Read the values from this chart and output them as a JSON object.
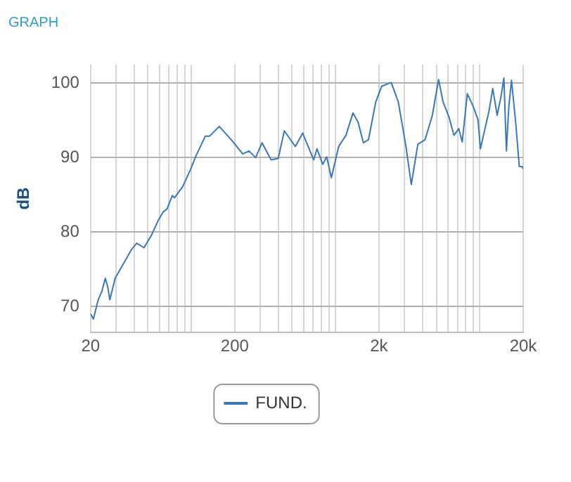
{
  "chart_data": {
    "type": "line",
    "title": "GRAPH",
    "ylabel": "dB",
    "log": "x",
    "grid": true,
    "legend": "bottom",
    "marker": "none",
    "line_style": "solid",
    "xlim": [
      20,
      20000
    ],
    "ylim": [
      66.5,
      102.5
    ],
    "xticks": [
      20,
      {
        "value": 30,
        "label": null
      },
      {
        "value": 40,
        "label": null
      },
      {
        "value": 50,
        "label": null
      },
      {
        "value": 60,
        "label": null
      },
      {
        "value": 70,
        "label": null
      },
      {
        "value": 80,
        "label": null
      },
      {
        "value": 90,
        "label": null
      },
      {
        "value": 100,
        "label": null
      },
      200,
      {
        "value": 300,
        "label": null
      },
      {
        "value": 400,
        "label": null
      },
      {
        "value": 500,
        "label": null
      },
      {
        "value": 600,
        "label": null
      },
      {
        "value": 700,
        "label": null
      },
      {
        "value": 800,
        "label": null
      },
      {
        "value": 900,
        "label": null
      },
      {
        "value": 1000,
        "label": null
      },
      {
        "value": 2000,
        "label": "2k"
      },
      {
        "value": 3000,
        "label": null
      },
      {
        "value": 4000,
        "label": null
      },
      {
        "value": 5000,
        "label": null
      },
      {
        "value": 6000,
        "label": null
      },
      {
        "value": 7000,
        "label": null
      },
      {
        "value": 8000,
        "label": null
      },
      {
        "value": 9000,
        "label": null
      },
      {
        "value": 10000,
        "label": null
      },
      {
        "value": 20000,
        "label": "20k"
      }
    ],
    "yticks": [
      70,
      80,
      90,
      100
    ],
    "series": [
      {
        "name": "FUND.",
        "color": "#3a78b5",
        "x": [
          20,
          20.9,
          22.5,
          23.9,
          25.3,
          26.3,
          27.2,
          29.6,
          33.2,
          38.6,
          41.8,
          46.9,
          52.6,
          59,
          63.7,
          67.8,
          73.7,
          76.3,
          87,
          97.6,
          108,
          125,
          134,
          156,
          195,
          227,
          251,
          279,
          309,
          357,
          400,
          441,
          526,
          591,
          705,
          743,
          815,
          868,
          935,
          1050,
          1180,
          1320,
          1430,
          1560,
          1690,
          1900,
          2090,
          2430,
          2720,
          3060,
          3350,
          3720,
          4170,
          4690,
          5180,
          5560,
          6130,
          6620,
          7150,
          7550,
          8200,
          9000,
          9720,
          10100,
          11600,
          12300,
          13200,
          14000,
          14700,
          15300,
          15900,
          16600,
          17800,
          18800,
          19600,
          20000
        ],
        "values": [
          69.0,
          68.3,
          70.8,
          72.0,
          73.8,
          72.6,
          70.9,
          73.8,
          75.5,
          77.7,
          78.5,
          77.9,
          79.5,
          81.6,
          82.7,
          83.1,
          84.9,
          84.6,
          86.1,
          88.2,
          90.3,
          92.9,
          92.9,
          94.2,
          92.1,
          90.5,
          90.9,
          90.0,
          92.0,
          89.7,
          89.9,
          93.6,
          91.5,
          93.3,
          89.7,
          91.2,
          89.1,
          90.1,
          87.3,
          91.5,
          93.0,
          96.0,
          94.8,
          92.0,
          92.4,
          97.5,
          99.6,
          100.1,
          97.5,
          91.8,
          86.4,
          91.8,
          92.4,
          95.7,
          100.5,
          97.5,
          95.4,
          93.0,
          93.9,
          92.1,
          98.6,
          96.9,
          95.1,
          91.2,
          96.3,
          99.3,
          95.7,
          98.1,
          100.7,
          90.9,
          96.9,
          100.4,
          94.4,
          88.8,
          88.8,
          88.5
        ]
      }
    ]
  }
}
